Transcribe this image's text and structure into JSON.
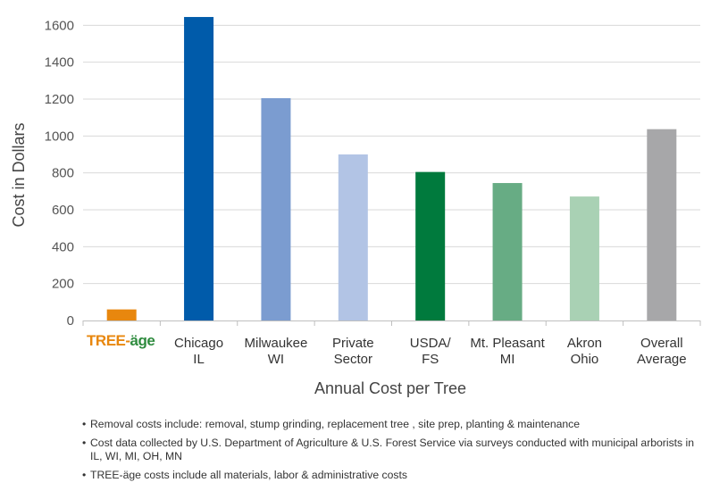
{
  "chart_data": {
    "type": "bar",
    "categories": [
      "TREE-äge",
      "Chicago IL",
      "Milwaukee WI",
      "Private Sector",
      "USDA/ FS",
      "Mt. Pleasant MI",
      "Akron Ohio",
      "Overall Average"
    ],
    "category_lines": [
      [
        "TREE-äge"
      ],
      [
        "Chicago",
        "IL"
      ],
      [
        "Milwaukee",
        "WI"
      ],
      [
        "Private",
        "Sector"
      ],
      [
        "USDA/",
        "FS"
      ],
      [
        "Mt. Pleasant",
        "MI"
      ],
      [
        "Akron",
        "Ohio"
      ],
      [
        "Overall",
        "Average"
      ]
    ],
    "values": [
      60,
      1645,
      1205,
      900,
      805,
      745,
      672,
      1037
    ],
    "colors": [
      "#E8870E",
      "#005BAA",
      "#7B9CD0",
      "#B2C4E5",
      "#007A3D",
      "#67AC84",
      "#A9D1B4",
      "#A7A7A9"
    ],
    "xlabel": "Annual Cost per Tree",
    "ylabel": "Cost in Dollars",
    "ylim": [
      0,
      1650
    ],
    "yticks": [
      0,
      200,
      400,
      600,
      800,
      1000,
      1200,
      1400,
      1600
    ],
    "grid": true,
    "logo": {
      "text_tree": "TREE-",
      "text_age": "äge",
      "color_tree": "#E8870E",
      "color_age": "#2E8B3E"
    }
  },
  "notes": [
    "Removal costs include: removal, stump grinding, replacement tree , site prep, planting & maintenance",
    "Cost data collected by U.S. Department of Agriculture & U.S. Forest Service via surveys conducted with municipal arborists in IL, WI, MI, OH, MN",
    "TREE-äge costs include all materials, labor & administrative costs"
  ]
}
